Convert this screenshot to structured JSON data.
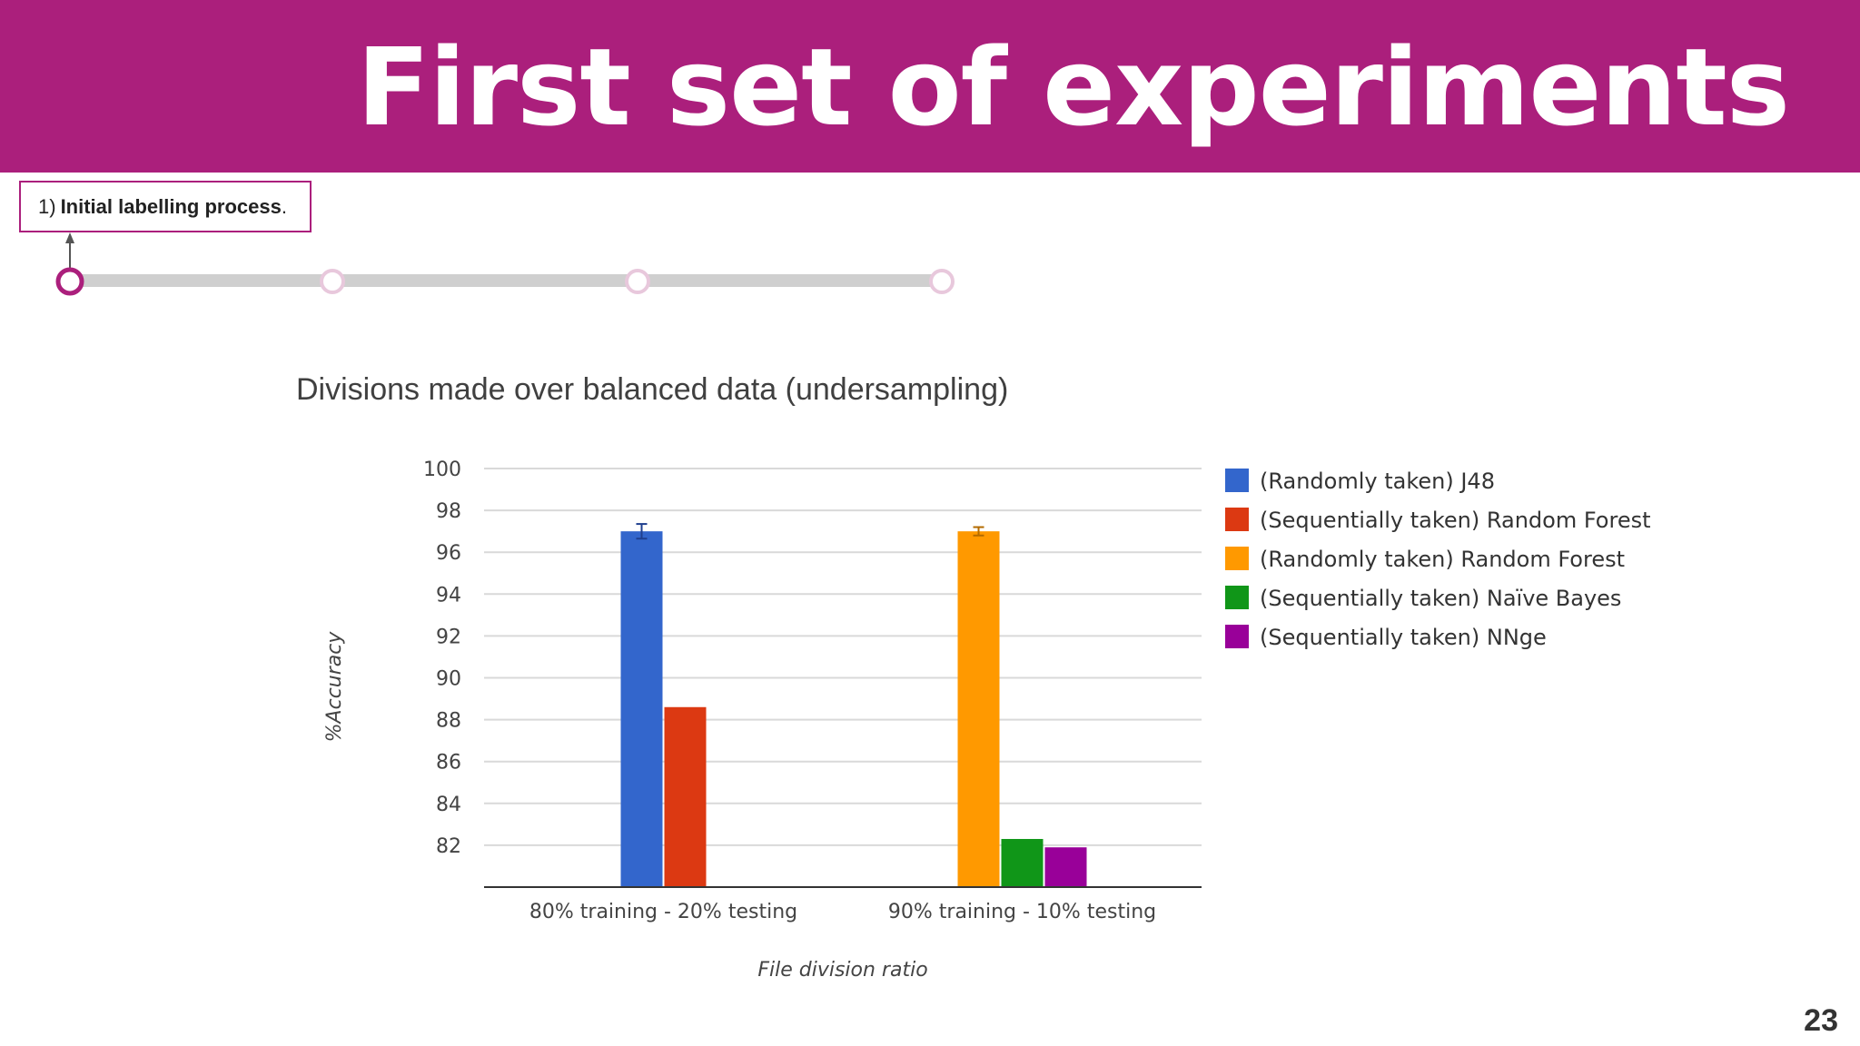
{
  "slide": {
    "title": "First set of experiments",
    "step_number": "1)",
    "step_label": "Initial labelling process",
    "step_suffix": ".",
    "subtitle": "Divisions made over balanced data (undersampling)",
    "page_number": "23",
    "accent_color": "#ab1f7c"
  },
  "timeline": {
    "nodes": 4,
    "active_index": 0
  },
  "chart_data": {
    "type": "bar",
    "title": "",
    "xlabel": "File division ratio",
    "ylabel": "%Accuracy",
    "ylim": [
      80,
      100
    ],
    "yticks": [
      82,
      84,
      86,
      88,
      90,
      92,
      94,
      96,
      98,
      100
    ],
    "grid": true,
    "legend_position": "right",
    "categories": [
      "80% training - 20% testing",
      "90% training - 10% testing"
    ],
    "series": [
      {
        "name": "(Randomly taken) J48",
        "color": "#3366cc",
        "values": [
          97.0,
          null
        ],
        "error": [
          0.35,
          null
        ]
      },
      {
        "name": "(Sequentially taken) Random Forest",
        "color": "#dc3912",
        "values": [
          88.6,
          null
        ]
      },
      {
        "name": "(Randomly taken) Random Forest",
        "color": "#ff9900",
        "values": [
          null,
          97.0
        ],
        "error": [
          null,
          0.2
        ]
      },
      {
        "name": "(Sequentially taken) Naïve Bayes",
        "color": "#109618",
        "values": [
          null,
          82.3
        ]
      },
      {
        "name": "(Sequentially taken) NNge",
        "color": "#990099",
        "values": [
          null,
          81.9
        ]
      }
    ]
  }
}
